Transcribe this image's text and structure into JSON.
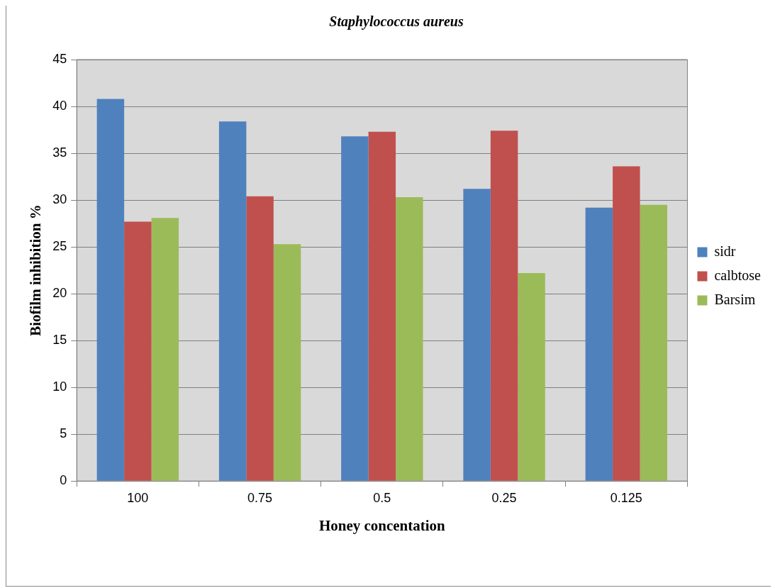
{
  "chart_data": {
    "type": "bar",
    "title": "Staphylococcus aureus",
    "xlabel": "Honey concentation",
    "ylabel": "Biofilm inhibition %",
    "categories": [
      "100",
      "0.75",
      "0.5",
      "0.25",
      "0.125"
    ],
    "series": [
      {
        "name": "sidr",
        "color": "#4f81bd",
        "values": [
          40.8,
          38.4,
          36.8,
          31.2,
          29.2
        ]
      },
      {
        "name": "calbtose",
        "color": "#c0504d",
        "values": [
          27.7,
          30.4,
          37.3,
          37.4,
          33.6
        ]
      },
      {
        "name": "Barsim",
        "color": "#9bbb59",
        "values": [
          28.1,
          25.3,
          30.3,
          22.2,
          29.5
        ]
      }
    ],
    "ylim": [
      0,
      45
    ],
    "yticks": [
      0,
      5,
      10,
      15,
      20,
      25,
      30,
      35,
      40,
      45
    ],
    "grid": "y",
    "legend": "right"
  }
}
